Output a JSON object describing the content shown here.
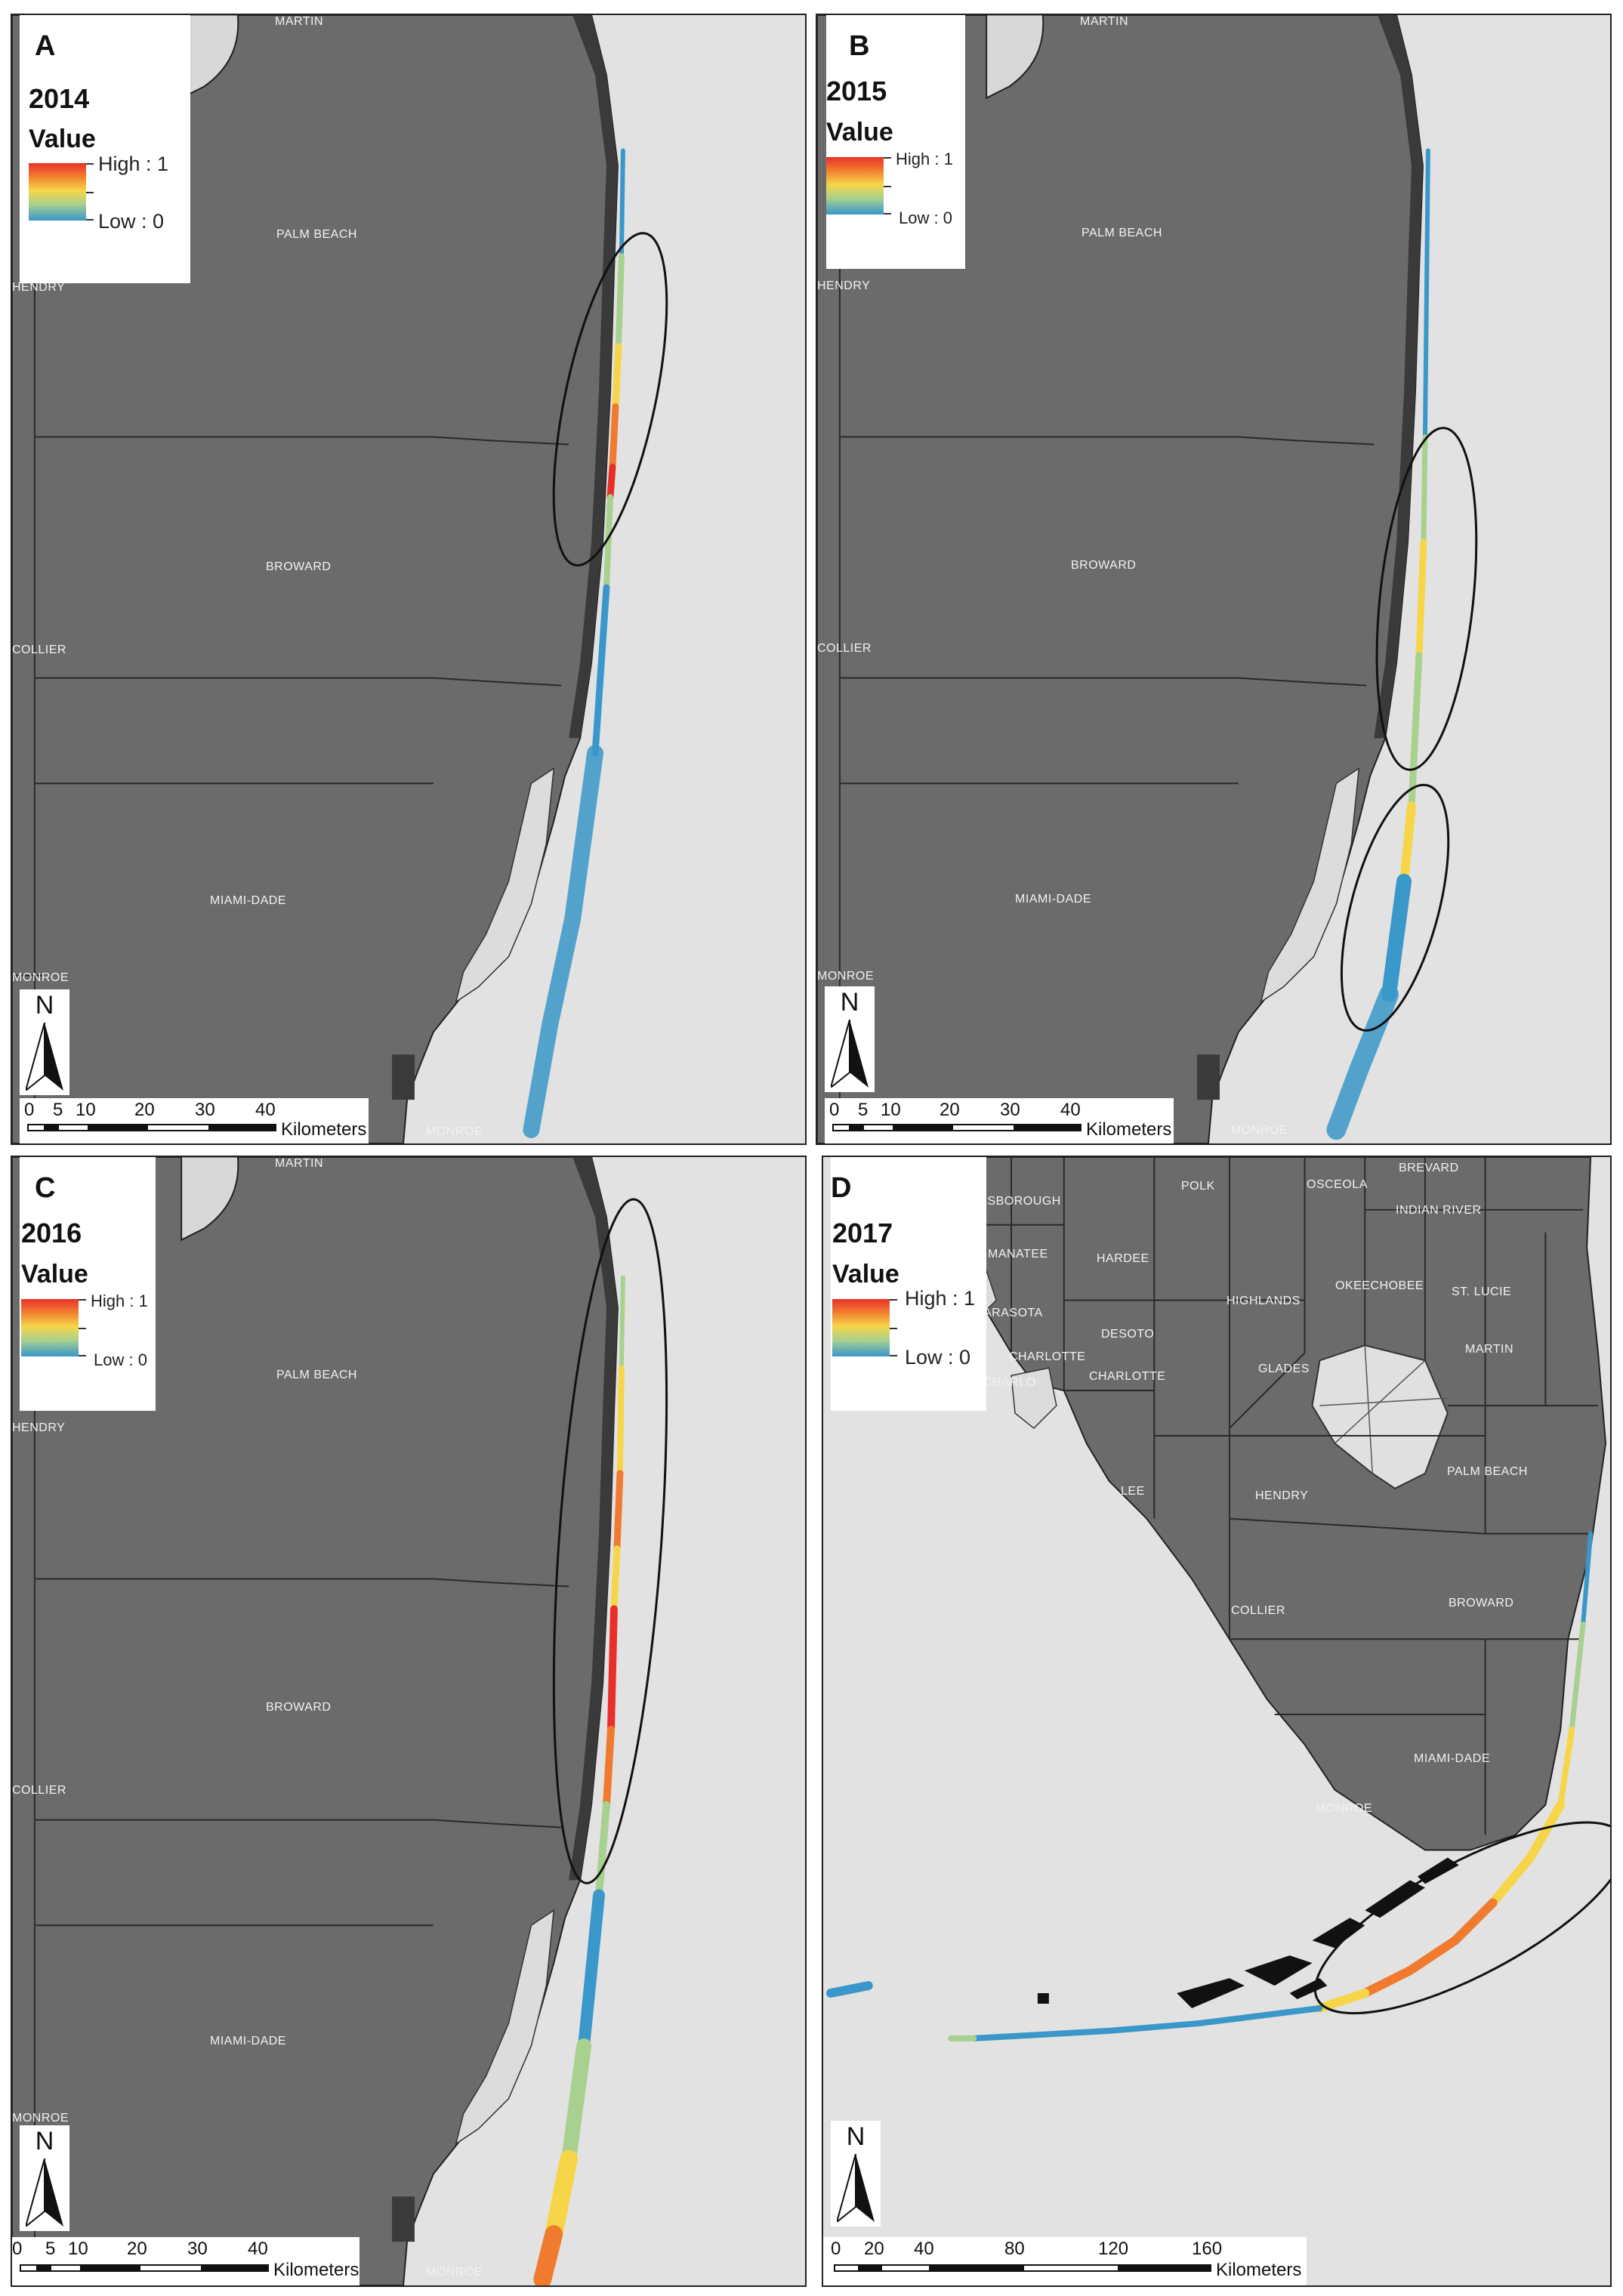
{
  "legend": {
    "title": "Value",
    "high": "High : 1",
    "low": "Low : 0"
  },
  "scale_unit": "Kilometers",
  "north_label": "N",
  "colors": {
    "land": "#6b6b6b",
    "water": "#e2e2e2",
    "high": "#e8302a",
    "mid": "#f6d648",
    "low": "#3a97c9"
  },
  "panels": [
    {
      "letter": "A",
      "year": "2014",
      "counties": [
        "MARTIN",
        "PALM BEACH",
        "HENDRY",
        "BROWARD",
        "COLLIER",
        "MIAMI-DADE",
        "MONROE",
        "MONROE"
      ],
      "scale_labels": [
        "0",
        "5",
        "10",
        "20",
        "30",
        "40"
      ]
    },
    {
      "letter": "B",
      "year": "2015",
      "counties": [
        "MARTIN",
        "PALM BEACH",
        "HENDRY",
        "BROWARD",
        "COLLIER",
        "MIAMI-DADE",
        "MONROE",
        "MONROE"
      ],
      "scale_labels": [
        "0",
        "5",
        "10",
        "20",
        "30",
        "40"
      ]
    },
    {
      "letter": "C",
      "year": "2016",
      "counties": [
        "MARTIN",
        "PALM BEACH",
        "HENDRY",
        "BROWARD",
        "COLLIER",
        "MIAMI-DADE",
        "MONROE",
        "MONROE"
      ],
      "scale_labels": [
        "0",
        "5",
        "10",
        "20",
        "30",
        "40"
      ]
    },
    {
      "letter": "D",
      "year": "2017",
      "counties": [
        "POLK",
        "OSCEOLA",
        "BREVARD",
        "LSBOROUGH",
        "INDIAN RIVER",
        "MANATEE",
        "HARDEE",
        "HIGHLANDS",
        "OKEECHOBEE",
        "ST. LUCIE",
        "ARASOTA",
        "DESOTO",
        "CHARLOTTE",
        "CHARLO",
        "CHARLOTTE",
        "GLADES",
        "MARTIN",
        "LEE",
        "HENDRY",
        "PALM BEACH",
        "COLLIER",
        "BROWARD",
        "MIAMI-DADE",
        "MONROE"
      ],
      "scale_labels": [
        "0",
        "20",
        "40",
        "80",
        "120",
        "160"
      ]
    }
  ]
}
